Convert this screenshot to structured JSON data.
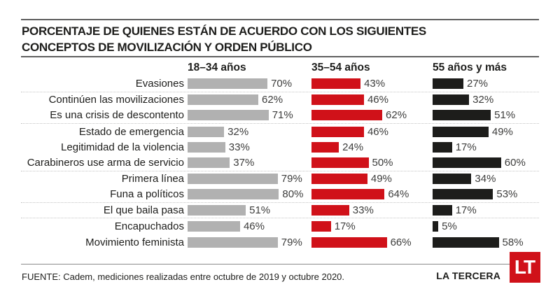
{
  "header": {
    "title_line1": "PORCENTAJE DE QUIENES ESTÁN DE ACUERDO CON LOS SIGUIENTES",
    "title_line2": "CONCEPTOS DE MOVILIZACIÓN Y ORDEN PÚBLICO"
  },
  "columns": [
    "18–34 años",
    "35–54 años",
    "55 años y más"
  ],
  "chart_data": {
    "type": "bar",
    "orientation": "horizontal",
    "title": "PORCENTAJE DE QUIENES ESTÁN DE ACUERDO CON LOS SIGUIENTES CONCEPTOS DE MOVILIZACIÓN Y ORDEN PÚBLICO",
    "unit": "%",
    "xlim": [
      0,
      100
    ],
    "grid": false,
    "value_labels": true,
    "legend_position": "top",
    "categories": [
      "Evasiones",
      "Continúen las movilizaciones",
      "Es una crisis de descontento",
      "Estado de emergencia",
      "Legitimidad de la violencia",
      "Carabineros use arma de servicio",
      "Primera línea",
      "Funa a políticos",
      "El que baila pasa",
      "Encapuchados",
      "Movimiento feminista"
    ],
    "series": [
      {
        "name": "18–34 años",
        "color": "#b1b1b1",
        "values": [
          70,
          62,
          71,
          32,
          33,
          37,
          79,
          80,
          51,
          46,
          79
        ]
      },
      {
        "name": "35–54 años",
        "color": "#d01119",
        "values": [
          43,
          46,
          62,
          46,
          24,
          50,
          49,
          64,
          33,
          17,
          66
        ]
      },
      {
        "name": "55 años y más",
        "color": "#1d1d1b",
        "values": [
          27,
          32,
          51,
          49,
          17,
          60,
          34,
          53,
          17,
          5,
          58
        ]
      }
    ],
    "group_separators_after": [
      0,
      2,
      5,
      7,
      8
    ]
  },
  "footer": {
    "source": "FUENTE: Cadem, mediciones realizadas entre octubre de 2019 y octubre 2020.",
    "brand": "LA TERCERA",
    "logo_text": "LT",
    "logo_color": "#d01119"
  },
  "colors": {
    "text": "#1d1d1b",
    "value_text": "#3d3d3c",
    "separator_dotted": "#c4c4c4",
    "rule_dark": "#5f5f5f",
    "rule_footer": "#8c8c8c",
    "bar_gray": "#b1b1b1",
    "bar_red": "#d01119",
    "bar_black": "#1d1d1b"
  }
}
